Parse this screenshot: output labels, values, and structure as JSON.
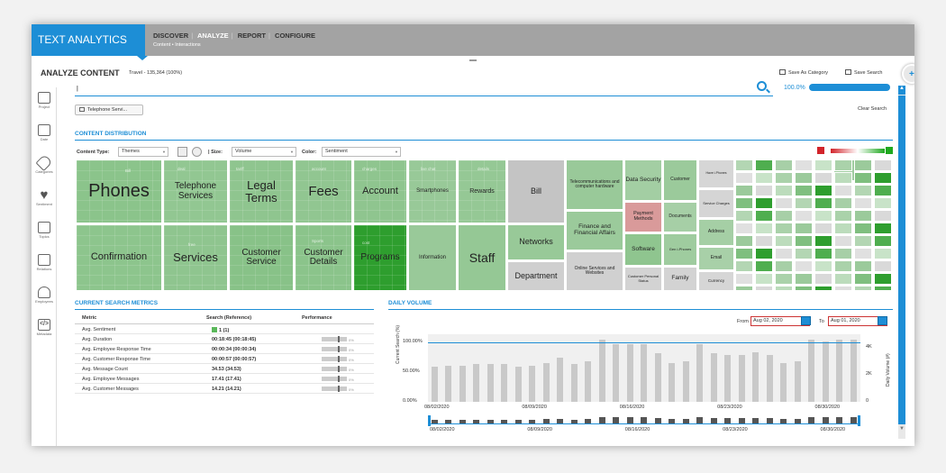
{
  "app": {
    "brand": "TEXT ANALYTICS",
    "nav": [
      "DISCOVER",
      "ANALYZE",
      "REPORT",
      "CONFIGURE"
    ],
    "subnav": "Content  •  Interactions"
  },
  "header": {
    "title": "ANALYZE CONTENT",
    "subtitle": "Travel - 135,364 (100%)",
    "save_category": "Save As Category",
    "save_search": "Save Search"
  },
  "sidebar": {
    "items": [
      {
        "label": "Project",
        "icon": "clipboard-icon"
      },
      {
        "label": "Date",
        "icon": "calendar-icon"
      },
      {
        "label": "Categories",
        "icon": "tag-icon"
      },
      {
        "label": "Sentiment",
        "icon": "heart-icon"
      },
      {
        "label": "Topics",
        "icon": "topics-icon"
      },
      {
        "label": "Relations",
        "icon": "relations-icon"
      },
      {
        "label": "Employees",
        "icon": "employees-icon"
      },
      {
        "label": "Metadata",
        "icon": "code-icon"
      }
    ]
  },
  "search": {
    "value": "|",
    "percent": "100.0%",
    "percent_value": 100,
    "chip": "Telephone Servi...",
    "clear": "Clear Search"
  },
  "content_distribution": {
    "title": "CONTENT DISTRIBUTION",
    "content_type_label": "Content Type:",
    "content_type_value": "Themes",
    "size_label": "| Size:",
    "size_value": "Volume",
    "color_label": "Color:",
    "color_value": "Sentiment",
    "legend_min_color": "#d2232a",
    "legend_max_color": "#1fa81f"
  },
  "treemap": {
    "tiles": [
      {
        "label": "Phones",
        "color": "#8bc48b"
      },
      {
        "label": "Telephone Services",
        "color": "#92c792"
      },
      {
        "label": "Legal Terms",
        "color": "#8fc58f"
      },
      {
        "label": "Fees",
        "color": "#91c691"
      },
      {
        "label": "Account",
        "color": "#8fc58f"
      },
      {
        "label": "Smartphones",
        "color": "#98c998"
      },
      {
        "label": "Rewards",
        "color": "#95c895"
      },
      {
        "label": "Bill",
        "color": "#c4c4c4"
      },
      {
        "label": "Networks",
        "color": "#98c998"
      },
      {
        "label": "Department",
        "color": "#cfcfcf"
      },
      {
        "label": "Telecommunications and computer hardware",
        "color": "#99c999"
      },
      {
        "label": "Finance and Financial Affairs",
        "color": "#9bca9b"
      },
      {
        "label": "Online Services and Websites",
        "color": "#d0d0d0"
      },
      {
        "label": "Data Security",
        "color": "#a3cea3"
      },
      {
        "label": "Payment Methods",
        "color": "#d99a9a"
      },
      {
        "label": "Software",
        "color": "#8fc58f"
      },
      {
        "label": "Customer Personal Status",
        "color": "#d3d3d3"
      },
      {
        "label": "Customer",
        "color": "#9bca9b"
      },
      {
        "label": "Documents",
        "color": "#a6cfa6"
      },
      {
        "label": "Gen i-Phones",
        "color": "#9fcc9f"
      },
      {
        "label": "Family",
        "color": "#d3d3d3"
      },
      {
        "label": "Confirmation",
        "color": "#8dc58d"
      },
      {
        "label": "Services",
        "color": "#8fc58f"
      },
      {
        "label": "Customer Service",
        "color": "#88c288"
      },
      {
        "label": "Customer Details",
        "color": "#8bc48b"
      },
      {
        "label": "Programs",
        "color": "#2e9e2e"
      },
      {
        "label": "Information",
        "color": "#99c999"
      },
      {
        "label": "Staff",
        "color": "#95c895"
      },
      {
        "label": "Have i-Phones",
        "color": "#d6d6d6"
      },
      {
        "label": "Service Charges",
        "color": "#d5d5d5"
      },
      {
        "label": "Address",
        "color": "#a5cfa5"
      },
      {
        "label": "Email",
        "color": "#a8d0a8"
      },
      {
        "label": "Currency",
        "color": "#d6d6d6"
      },
      {
        "label": "City",
        "color": "#9fcc9f"
      }
    ],
    "faint_labels": [
      "Bill",
      "deal",
      "tariff",
      "account",
      "charges",
      "live chat",
      "details",
      "free",
      "Sports",
      "cost"
    ]
  },
  "metrics": {
    "title": "CURRENT SEARCH METRICS",
    "headers": [
      "Metric",
      "Search (Reference)",
      "Performance"
    ],
    "rows": [
      {
        "metric": "Avg. Sentiment",
        "value": "1 (1)",
        "perf": ""
      },
      {
        "metric": "Avg. Duration",
        "value": "00:18:45 (00:18:45)",
        "perf": "0%"
      },
      {
        "metric": "Avg. Employee Response Time",
        "value": "00:00:34 (00:00:34)",
        "perf": "0%"
      },
      {
        "metric": "Avg. Customer Response Time",
        "value": "00:00:57 (00:00:57)",
        "perf": "0%"
      },
      {
        "metric": "Avg. Message Count",
        "value": "34.53 (34.53)",
        "perf": "0%"
      },
      {
        "metric": "Avg. Employee Messages",
        "value": "17.41 (17.41)",
        "perf": "0%"
      },
      {
        "metric": "Avg. Customer Messages",
        "value": "14.21 (14.21)",
        "perf": "0%"
      }
    ]
  },
  "daily_volume": {
    "title": "DAILY VOLUME",
    "from_label": "From",
    "from_value": "Aug 02, 2020",
    "to_label": "To",
    "to_value": "Aug 01, 2020",
    "left_axis_label": "Current Search (%)",
    "right_axis_label": "Daily Volume (#)",
    "left_ticks": [
      "100.00%",
      "50.00%",
      "0.00%"
    ],
    "right_ticks": [
      "4K",
      "2K",
      "0"
    ],
    "mini_ticks": [
      "08/02/2020",
      "08/09/2020",
      "08/16/2020",
      "08/23/2020",
      "08/30/2020"
    ]
  },
  "chart_data": {
    "type": "bar",
    "x": [
      "08/02/2020",
      "08/03/2020",
      "08/04/2020",
      "08/05/2020",
      "08/06/2020",
      "08/07/2020",
      "08/08/2020",
      "08/09/2020",
      "08/10/2020",
      "08/11/2020",
      "08/12/2020",
      "08/13/2020",
      "08/14/2020",
      "08/15/2020",
      "08/16/2020",
      "08/17/2020",
      "08/18/2020",
      "08/19/2020",
      "08/20/2020",
      "08/21/2020",
      "08/22/2020",
      "08/23/2020",
      "08/24/2020",
      "08/25/2020",
      "08/26/2020",
      "08/27/2020",
      "08/28/2020",
      "08/29/2020",
      "08/30/2020",
      "08/31/2020",
      "09/01/2020"
    ],
    "x_ticks": [
      "08/02/2020",
      "08/09/2020",
      "08/16/2020",
      "08/23/2020",
      "08/30/2020"
    ],
    "series": [
      {
        "values": [
          2600,
          2700,
          2700,
          2800,
          2800,
          2800,
          2600,
          2700,
          2900,
          3300,
          2800,
          3000,
          4600,
          4300,
          4300,
          4300,
          3600,
          2900,
          3000,
          4300,
          3600,
          3500,
          3500,
          3700,
          3500,
          2900,
          3000,
          4600,
          4500,
          4600,
          4600
        ]
      },
      {
        "values": [
          100,
          100,
          100,
          100,
          100,
          100,
          100,
          100,
          100,
          100,
          100,
          100,
          100,
          100,
          100,
          100,
          100,
          100,
          100,
          100,
          100,
          100,
          100,
          100,
          100,
          100,
          100,
          100,
          100,
          100,
          100
        ]
      }
    ],
    "ylim": [
      0,
      5000
    ],
    "ylim_secondary": [
      0,
      100
    ],
    "left_ticks": [
      "100.00%",
      "50.00%",
      "0.00%"
    ],
    "right_ticks": [
      "4K",
      "2K",
      "0"
    ],
    "ylabel": "Current Search (%)",
    "ylabel_right": "Daily Volume (#)"
  }
}
